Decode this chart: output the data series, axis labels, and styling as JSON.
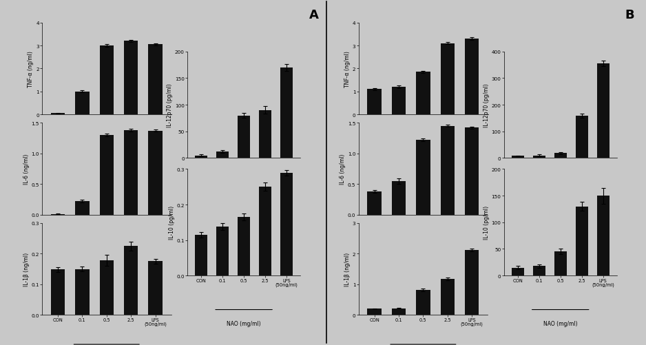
{
  "categories": [
    "CON",
    "0.1",
    "0.5",
    "2.5",
    "LPS\n(50ng/ml)"
  ],
  "panel_A": {
    "TNF_alpha": {
      "values": [
        0.05,
        1.0,
        3.0,
        3.2,
        3.05
      ],
      "errors": [
        0.02,
        0.05,
        0.05,
        0.05,
        0.04
      ],
      "ylabel": "TNF-α (ng/ml)",
      "ylim": [
        0,
        4
      ],
      "yticks": [
        0,
        1,
        2,
        3,
        4
      ]
    },
    "IL_6": {
      "values": [
        0.01,
        0.22,
        1.3,
        1.38,
        1.37
      ],
      "errors": [
        0.005,
        0.025,
        0.02,
        0.02,
        0.015
      ],
      "ylabel": "IL-6 (ng/ml)",
      "ylim": [
        0,
        1.5
      ],
      "yticks": [
        0.0,
        0.5,
        1.0,
        1.5
      ]
    },
    "IL_1b": {
      "values": [
        0.148,
        0.15,
        0.178,
        0.225,
        0.175
      ],
      "errors": [
        0.008,
        0.008,
        0.018,
        0.015,
        0.008
      ],
      "ylabel": "IL-1β (ng/ml)",
      "ylim": [
        0,
        0.3
      ],
      "yticks": [
        0.0,
        0.1,
        0.2,
        0.3
      ]
    },
    "IL_12p70": {
      "values": [
        5,
        12,
        80,
        90,
        170
      ],
      "errors": [
        2,
        3,
        5,
        7,
        7
      ],
      "ylabel": "IL-12p70 (pg/ml)",
      "ylim": [
        0,
        200
      ],
      "yticks": [
        0,
        50,
        100,
        150,
        200
      ]
    },
    "IL_10": {
      "values": [
        0.115,
        0.138,
        0.165,
        0.25,
        0.29
      ],
      "errors": [
        0.008,
        0.01,
        0.01,
        0.012,
        0.008
      ],
      "ylabel": "IL-10 (pg/ml)",
      "ylim": [
        0,
        0.3
      ],
      "yticks": [
        0.0,
        0.1,
        0.2,
        0.3
      ]
    }
  },
  "panel_B": {
    "TNF_alpha": {
      "values": [
        1.1,
        1.2,
        1.85,
        3.1,
        3.3
      ],
      "errors": [
        0.05,
        0.06,
        0.05,
        0.05,
        0.05
      ],
      "ylabel": "TNF-α (ng/ml)",
      "ylim": [
        0,
        4
      ],
      "yticks": [
        0,
        1,
        2,
        3,
        4
      ]
    },
    "IL_6": {
      "values": [
        0.38,
        0.55,
        1.22,
        1.45,
        1.42
      ],
      "errors": [
        0.025,
        0.045,
        0.02,
        0.018,
        0.018
      ],
      "ylabel": "IL-6 (ng/ml)",
      "ylim": [
        0,
        1.5
      ],
      "yticks": [
        0.0,
        0.5,
        1.0,
        1.5
      ]
    },
    "IL_1b": {
      "values": [
        0.2,
        0.22,
        0.82,
        1.18,
        2.12
      ],
      "errors": [
        0.018,
        0.02,
        0.04,
        0.04,
        0.05
      ],
      "ylabel": "IL-1β (ng/ml)",
      "ylim": [
        0,
        3
      ],
      "yticks": [
        0,
        1,
        2,
        3
      ]
    },
    "IL_12p70": {
      "values": [
        8,
        10,
        18,
        158,
        355
      ],
      "errors": [
        2,
        3,
        3,
        8,
        10
      ],
      "ylabel": "IL-12p70 (pg/ml)",
      "ylim": [
        0,
        400
      ],
      "yticks": [
        0,
        100,
        200,
        300,
        400
      ]
    },
    "IL_10": {
      "values": [
        15,
        18,
        45,
        130,
        150
      ],
      "errors": [
        3,
        3,
        5,
        8,
        15
      ],
      "ylabel": "IL-10 (pg/ml)",
      "ylim": [
        0,
        200
      ],
      "yticks": [
        0,
        50,
        100,
        150,
        200
      ]
    }
  },
  "bar_color": "#111111",
  "bg_color": "#c8c8c8",
  "label_A": "A",
  "label_B": "B"
}
